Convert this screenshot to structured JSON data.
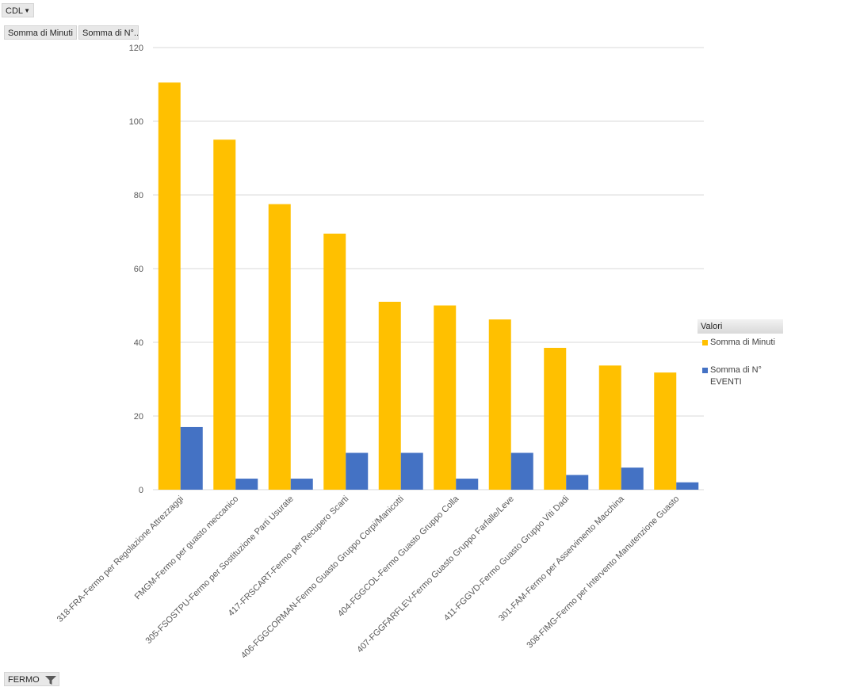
{
  "field_buttons": {
    "filter_field": "CDL",
    "value_1": "Somma  di Minuti",
    "value_2": "Somma  di N°...",
    "axis_field": "FERMO"
  },
  "legend": {
    "title": "Valori",
    "items": [
      "Somma di Minuti",
      "Somma di N° EVENTI"
    ]
  },
  "colors": {
    "minuti": "#FFC000",
    "eventi": "#4472C4",
    "gridline": "#d9d9d9"
  },
  "chart_data": {
    "type": "bar",
    "categories": [
      "318-FRA-Fermo per Regolazione Attrezzaggi",
      "FMGM-Fermo per guasto meccanico",
      "305-FSOSTPU-Fermo per Sostituzione Parti Usurate",
      "417-FRSCART-Fermo per Recupero Scarti",
      "406-FGGCORMAN-Fermo Guasto Gruppo Corpi/Manicotti",
      "404-FGGCOL-Fermo Guasto Gruppo Colla",
      "407-FGGFARFLEV-Fermo Guasto Gruppo Farfalle/Leve",
      "411-FGGVD-Fermo Guasto Gruppo Viti Dadi",
      "301-FAM-Fermo per Asservimento Macchina",
      "308-FIMG-Fermo per Intervento Manutenzione Guasto"
    ],
    "series": [
      {
        "name": "Somma di Minuti",
        "values": [
          110.5,
          95,
          77.5,
          69.5,
          51,
          50,
          46.2,
          38.5,
          33.7,
          31.8
        ]
      },
      {
        "name": "Somma di N° EVENTI",
        "values": [
          17,
          3,
          3,
          10,
          10,
          3,
          10,
          4,
          6,
          2
        ]
      }
    ],
    "y_ticks": [
      0,
      20,
      40,
      60,
      80,
      100,
      120
    ],
    "ylim": [
      0,
      120
    ],
    "grid": true,
    "legend_position": "right"
  }
}
